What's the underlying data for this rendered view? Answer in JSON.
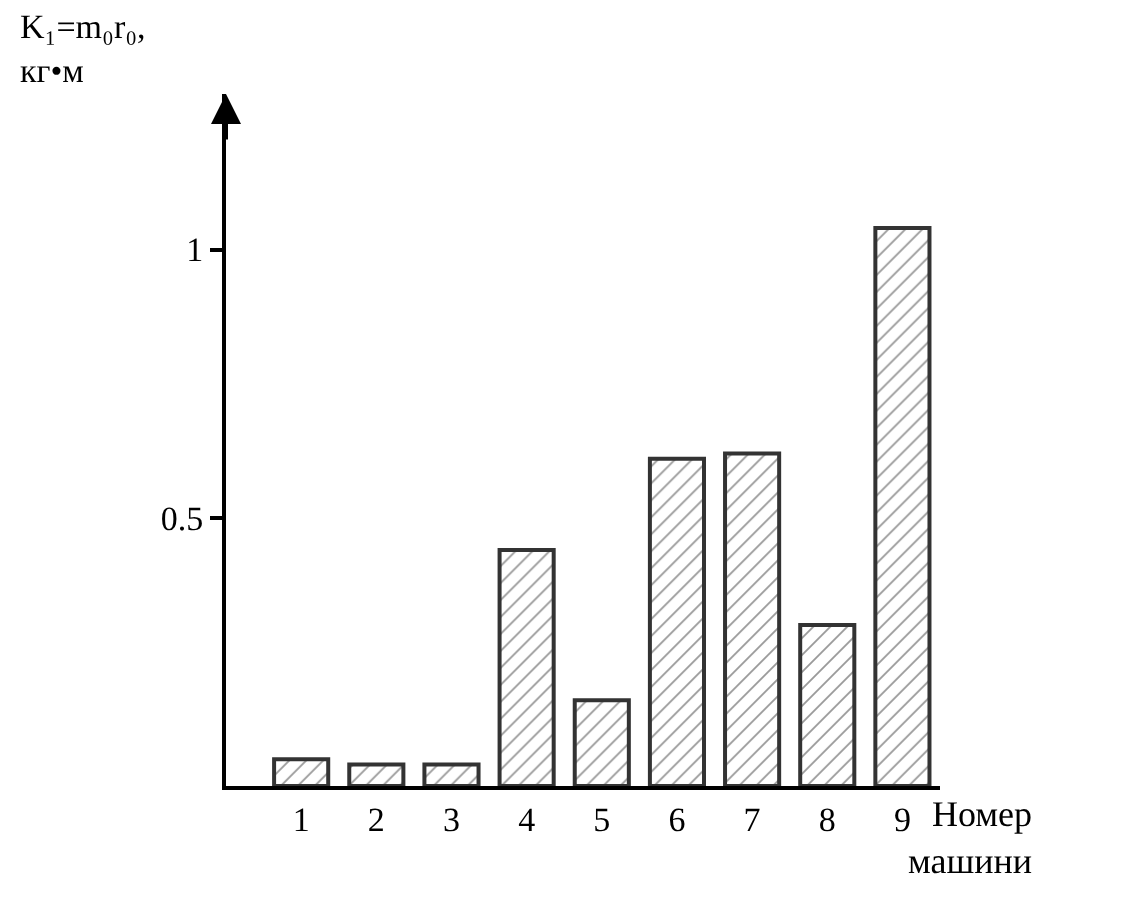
{
  "chart_data": {
    "type": "bar",
    "ylabel": "K₁=m₀r₀, кг•м",
    "xlabel": "Номер машини",
    "categories": [
      "1",
      "2",
      "3",
      "4",
      "5",
      "6",
      "7",
      "8",
      "9"
    ],
    "values": [
      0.05,
      0.04,
      0.04,
      0.44,
      0.16,
      0.61,
      0.62,
      0.3,
      1.04
    ],
    "color": "#333333",
    "ylim": [
      0,
      1.29
    ],
    "yticks": [
      0.5,
      1
    ]
  }
}
